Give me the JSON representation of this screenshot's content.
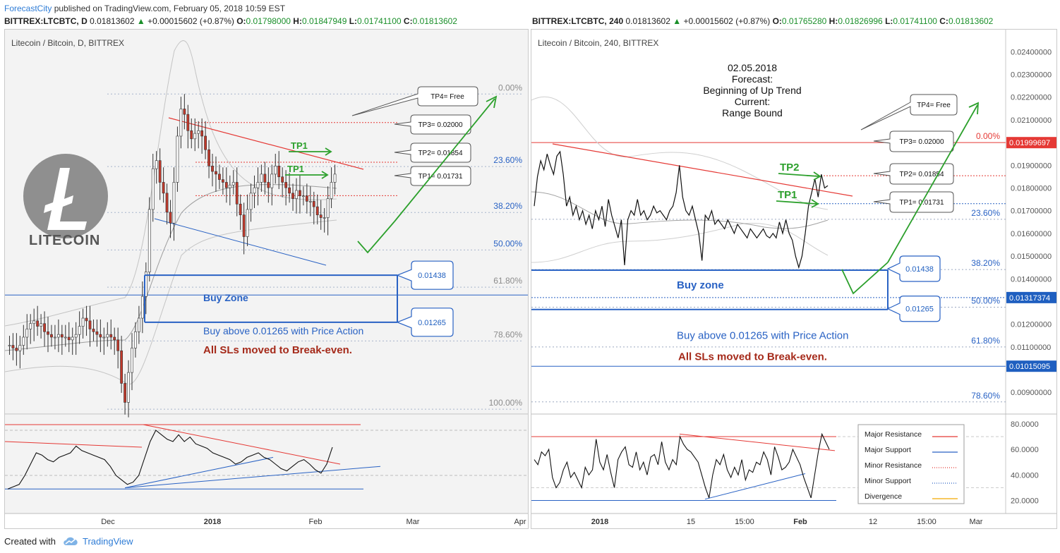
{
  "header": {
    "author": "ForecastCity",
    "published": "published on TradingView.com, February 05, 2018 10:59 EST",
    "left": {
      "symbol": "BITTREX:LTCBTC, D",
      "last": "0.01813602",
      "change_arrow": "▲",
      "change": "+0.00015602 (+0.87%)",
      "o_label": "O:",
      "o": "0.01798000",
      "h_label": "H:",
      "h": "0.01847949",
      "l_label": "L:",
      "l": "0.01741100",
      "c_label": "C:",
      "c": "0.01813602"
    },
    "right": {
      "symbol": "BITTREX:LTCBTC, 240",
      "last": "0.01813602",
      "change_arrow": "▲",
      "change": "+0.00015602 (+0.87%)",
      "o_label": "O:",
      "o": "0.01765280",
      "h_label": "H:",
      "h": "0.01826996",
      "l_label": "L:",
      "l": "0.01741100",
      "c_label": "C:",
      "c": "0.01813602"
    }
  },
  "footer": {
    "created_with": "Created with",
    "tradingview": "TradingView",
    "cloud_icon": "tradingview-cloud-icon"
  },
  "colors": {
    "accent": "#2e7cd6",
    "resistance": "#e53935",
    "support": "#2962c4",
    "tp_green": "#2ca02c",
    "sl_text": "#a52a1a",
    "fib": "#9aa7c0",
    "price_tag": "#e53935",
    "support_tag": "#1f5fc0"
  },
  "chart_data": [
    {
      "type": "candlestick",
      "title": "Litecoin / Bitcoin, D, BITTREX",
      "logo_text": "LITECOIN",
      "x_ticks": [
        "Dec",
        "2018",
        "Feb",
        "Mar",
        "Apr"
      ],
      "x_ticks_bold": [
        "2018"
      ],
      "fib_levels": [
        {
          "label": "0.00%",
          "value": 0.02105
        },
        {
          "label": "23.60%",
          "value": 0.01838
        },
        {
          "label": "38.20%",
          "value": 0.01669
        },
        {
          "label": "50.00%",
          "value": 0.01531
        },
        {
          "label": "61.80%",
          "value": 0.01394
        },
        {
          "label": "78.60%",
          "value": 0.01196
        },
        {
          "label": "100.00%",
          "value": 0.00945
        }
      ],
      "ylim": [
        0.0094,
        0.0229
      ],
      "major_support": 0.01365,
      "targets": [
        {
          "label": "TP4= Free"
        },
        {
          "label": "TP3= 0.02000",
          "value": 0.02
        },
        {
          "label": "TP2= 0.01854",
          "value": 0.01854
        },
        {
          "label": "TP1= 0.01731",
          "value": 0.01731
        }
      ],
      "buy_zone": {
        "label": "Buy Zone",
        "top": 0.01438,
        "bottom": 0.01265,
        "top_label": "0.01438",
        "bottom_label": "0.01265"
      },
      "tp_markers": [
        "TP1",
        "TP1"
      ],
      "annotations": {
        "buy_text": "Buy above 0.01265 with Price Action",
        "sl_text": "All SLs moved to Break-even."
      },
      "closes": [
        0.0118,
        0.0117,
        0.0116,
        0.0118,
        0.0121,
        0.0124,
        0.0126,
        0.0127,
        0.0125,
        0.0126,
        0.0123,
        0.0122,
        0.0121,
        0.0121,
        0.0122,
        0.0121,
        0.0121,
        0.012,
        0.0121,
        0.0122,
        0.0125,
        0.0128,
        0.0127,
        0.0124,
        0.0123,
        0.0122,
        0.0121,
        0.0121,
        0.0122,
        0.0121,
        0.012,
        0.0116,
        0.0104,
        0.0097,
        0.0108,
        0.0117,
        0.0123,
        0.0128,
        0.0136,
        0.0145,
        0.0168,
        0.0183,
        0.0186,
        0.0178,
        0.0174,
        0.0167,
        0.0163,
        0.0178,
        0.0195,
        0.0205,
        0.0203,
        0.0197,
        0.0194,
        0.0196,
        0.0197,
        0.0195,
        0.019,
        0.0184,
        0.0182,
        0.0181,
        0.0179,
        0.0178,
        0.0176,
        0.0177,
        0.0178,
        0.017,
        0.0166,
        0.0158,
        0.0168,
        0.0174,
        0.0176,
        0.0178,
        0.0181,
        0.0178,
        0.0176,
        0.0181,
        0.0184,
        0.018,
        0.0178,
        0.0176,
        0.0174,
        0.0172,
        0.0175,
        0.0173,
        0.0173,
        0.0171,
        0.0171,
        0.0169,
        0.0166,
        0.0165,
        0.0165,
        0.0172,
        0.0178,
        0.0181
      ],
      "osc": {
        "type": "line",
        "values": [
          18,
          20,
          22,
          30,
          40,
          50,
          48,
          44,
          42,
          46,
          48,
          50,
          56,
          52,
          50,
          48,
          46,
          44,
          38,
          30,
          26,
          22,
          24,
          30,
          45,
          60,
          70,
          66,
          62,
          60,
          66,
          60,
          64,
          58,
          56,
          54,
          50,
          48,
          46,
          44,
          40,
          42,
          46,
          48,
          50,
          46,
          44,
          40,
          36,
          34,
          38,
          42,
          44,
          40,
          35,
          32,
          40,
          55
        ]
      }
    },
    {
      "type": "line",
      "title": "Litecoin / Bitcoin, 240, BITTREX",
      "x_ticks": [
        "2018",
        "15",
        "15:00",
        "Feb",
        "12",
        "15:00",
        "Mar"
      ],
      "x_ticks_bold": [
        "2018",
        "Feb"
      ],
      "y_ticks": [
        "0.02400000",
        "0.02300000",
        "0.02200000",
        "0.02100000",
        "0.01900000",
        "0.01800000",
        "0.01700000",
        "0.01600000",
        "0.01500000",
        "0.01400000",
        "0.01200000",
        "0.01100000",
        "0.00900000"
      ],
      "ylim": [
        0.0082,
        0.0246
      ],
      "price_tags": [
        {
          "label": "0.01999697",
          "value": 0.01999697
        },
        {
          "label": "0.01317374",
          "value": 0.01317374
        },
        {
          "label": "0.01015095",
          "value": 0.01015095
        }
      ],
      "fib_levels": [
        {
          "label": "0.00%",
          "value": 0.02
        },
        {
          "label": "23.60%",
          "value": 0.01662
        },
        {
          "label": "38.20%",
          "value": 0.01441
        },
        {
          "label": "50.00%",
          "value": 0.01275
        },
        {
          "label": "61.80%",
          "value": 0.011
        },
        {
          "label": "78.60%",
          "value": 0.00858
        }
      ],
      "forecast": {
        "date": "02.05.2018",
        "line1": "Forecast:",
        "line2": "Beginning of Up Trend",
        "line3": "Current:",
        "line4": "Range Bound"
      },
      "targets": [
        {
          "label": "TP4= Free"
        },
        {
          "label": "TP3= 0.02000",
          "value": 0.02
        },
        {
          "label": "TP2= 0.01854",
          "value": 0.01854
        },
        {
          "label": "TP1= 0.01731",
          "value": 0.01731
        }
      ],
      "buy_zone": {
        "label": "Buy zone",
        "top": 0.01438,
        "bottom": 0.01265,
        "top_label": "0.01438",
        "bottom_label": "0.01265"
      },
      "tp_markers": [
        "TP2",
        "TP1"
      ],
      "annotations": {
        "buy_text": "Buy above 0.01265 with Price Action",
        "sl_text": "All SLs moved to Break-even."
      },
      "closes": [
        0.0172,
        0.0185,
        0.0192,
        0.0188,
        0.0195,
        0.019,
        0.0186,
        0.0194,
        0.0196,
        0.0186,
        0.0172,
        0.0176,
        0.0168,
        0.0172,
        0.0166,
        0.017,
        0.0164,
        0.0168,
        0.0162,
        0.017,
        0.0166,
        0.0172,
        0.0163,
        0.0175,
        0.0168,
        0.0163,
        0.0158,
        0.0166,
        0.0146,
        0.0166,
        0.017,
        0.0168,
        0.0175,
        0.0168,
        0.017,
        0.0166,
        0.0168,
        0.0172,
        0.0169,
        0.017,
        0.0168,
        0.0166,
        0.017,
        0.0172,
        0.0178,
        0.019,
        0.0176,
        0.017,
        0.0168,
        0.0172,
        0.0166,
        0.016,
        0.0148,
        0.0168,
        0.0166,
        0.017,
        0.0164,
        0.0166,
        0.0164,
        0.0162,
        0.0166,
        0.0163,
        0.016,
        0.0164,
        0.0162,
        0.016,
        0.0158,
        0.0162,
        0.016,
        0.0158,
        0.016,
        0.0162,
        0.0159,
        0.0158,
        0.016,
        0.0158,
        0.0165,
        0.016,
        0.0166,
        0.016,
        0.0157,
        0.015,
        0.0145,
        0.015,
        0.016,
        0.0172,
        0.0178,
        0.0184,
        0.0176,
        0.0186,
        0.018,
        0.0181
      ],
      "osc": {
        "type": "line",
        "y_ticks": [
          "80.0000",
          "60.0000",
          "40.0000",
          "20.0000"
        ],
        "ylim": [
          12,
          86
        ],
        "values": [
          52,
          48,
          58,
          55,
          60,
          38,
          30,
          34,
          44,
          50,
          38,
          42,
          36,
          30,
          46,
          40,
          44,
          68,
          50,
          44,
          56,
          42,
          30,
          52,
          58,
          62,
          48,
          46,
          58,
          44,
          50,
          40,
          54,
          56,
          48,
          66,
          50,
          44,
          52,
          48,
          70,
          64,
          60,
          58,
          54,
          50,
          40,
          30,
          22,
          40,
          52,
          48,
          56,
          44,
          38,
          46,
          40,
          52,
          36,
          44,
          42,
          50,
          48,
          58,
          52,
          40,
          62,
          54,
          44,
          46,
          50,
          60,
          54,
          48,
          38,
          30,
          22,
          40,
          58,
          72,
          66,
          60
        ]
      },
      "legend": {
        "items": [
          {
            "label": "Major Resistance",
            "color": "#e53935",
            "style": "solid"
          },
          {
            "label": "Major Support",
            "color": "#2962c4",
            "style": "solid"
          },
          {
            "label": "Minor Resistance",
            "color": "#e53935",
            "style": "dotted"
          },
          {
            "label": "Minor Support",
            "color": "#2962c4",
            "style": "dotted"
          },
          {
            "label": "Divergence",
            "color": "#f2a900",
            "style": "solid"
          }
        ]
      }
    }
  ]
}
